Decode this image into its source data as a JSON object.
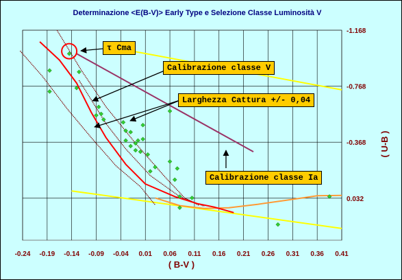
{
  "chart_data": {
    "type": "scatter",
    "title": "Determinazione <E(B-V)> Early Type e Selezione Classe Luminosità V",
    "xlabel": "( B-V )",
    "ylabel": "( U-B )",
    "x_ticks": [
      "-0.24",
      "-0.19",
      "-0.14",
      "-0.09",
      "-0.04",
      "0.01",
      "0.06",
      "0.11",
      "0.16",
      "0.21",
      "0.26",
      "0.31",
      "0.36",
      "0.41"
    ],
    "y_ticks": [
      "-1.168",
      "-0.768",
      "-0.368",
      "0.032"
    ],
    "xlim": [
      -0.24,
      0.41
    ],
    "ylim": [
      0.332,
      -1.168
    ],
    "grid": true,
    "colors": {
      "background": "#ccffff",
      "title": "#000080",
      "axis_label": "#800000",
      "points": "#33cc33",
      "main_sequence": "#ff0000",
      "capture_band": "#800000",
      "class_ia": "#993366",
      "yellow_lines": "#ffff00",
      "orange_curve": "#ff9933",
      "annotation_box": "#ffcc00",
      "tcma_circle": "#ff0000"
    },
    "points": [
      [
        -0.185,
        -0.88
      ],
      [
        -0.185,
        -0.73
      ],
      [
        -0.145,
        -1.0
      ],
      [
        -0.125,
        -0.87
      ],
      [
        -0.13,
        -0.755
      ],
      [
        -0.085,
        -0.62
      ],
      [
        -0.09,
        -0.56
      ],
      [
        -0.08,
        -0.57
      ],
      [
        -0.075,
        -0.53
      ],
      [
        -0.035,
        -0.51
      ],
      [
        -0.03,
        -0.45
      ],
      [
        -0.03,
        -0.38
      ],
      [
        -0.02,
        -0.34
      ],
      [
        -0.02,
        -0.44
      ],
      [
        -0.01,
        -0.36
      ],
      [
        -0.005,
        -0.38
      ],
      [
        -0.01,
        -0.31
      ],
      [
        0.005,
        -0.49
      ],
      [
        0.005,
        -0.39
      ],
      [
        0.0,
        -0.3
      ],
      [
        0.015,
        -0.28
      ],
      [
        0.02,
        -0.16
      ],
      [
        0.03,
        -0.19
      ],
      [
        0.06,
        -0.59
      ],
      [
        0.06,
        -0.23
      ],
      [
        0.075,
        -0.18
      ],
      [
        0.07,
        -0.1
      ],
      [
        0.08,
        0.02
      ],
      [
        0.08,
        0.1
      ],
      [
        0.105,
        0.03
      ],
      [
        0.28,
        0.22
      ],
      [
        0.385,
        0.02
      ]
    ],
    "main_sequence": [
      [
        -0.205,
        -1.085
      ],
      [
        -0.165,
        -0.955
      ],
      [
        -0.13,
        -0.79
      ],
      [
        -0.1,
        -0.58
      ],
      [
        -0.07,
        -0.4
      ],
      [
        -0.03,
        -0.21
      ],
      [
        0.01,
        -0.07
      ],
      [
        0.07,
        0.02
      ],
      [
        0.115,
        0.07
      ],
      [
        0.15,
        0.095
      ],
      [
        0.19,
        0.135
      ]
    ],
    "capture_upper": [
      [
        -0.17,
        -1.168
      ],
      [
        -0.12,
        -0.88
      ],
      [
        -0.07,
        -0.62
      ],
      [
        -0.01,
        -0.36
      ],
      [
        0.05,
        -0.12
      ],
      [
        0.09,
        0.03
      ],
      [
        0.12,
        0.085
      ]
    ],
    "capture_lower": [
      [
        -0.245,
        -1.02
      ],
      [
        -0.2,
        -0.84
      ],
      [
        -0.15,
        -0.61
      ],
      [
        -0.1,
        -0.4
      ],
      [
        -0.05,
        -0.2
      ],
      [
        0.0,
        -0.05
      ],
      [
        0.03,
        0.08
      ]
    ],
    "capture_lower2": [
      [
        -0.125,
        -0.81
      ],
      [
        -0.1,
        -0.67
      ],
      [
        -0.07,
        -0.5
      ],
      [
        -0.03,
        -0.32
      ],
      [
        0.02,
        -0.13
      ],
      [
        0.08,
        0.02
      ],
      [
        0.13,
        0.09
      ]
    ],
    "class_ia_line": [
      [
        -0.13,
        -1.0
      ],
      [
        0.23,
        -0.3
      ]
    ],
    "yellow_line_top": [
      [
        -0.065,
        -1.05
      ],
      [
        0.41,
        -0.742
      ]
    ],
    "yellow_line_bottom": [
      [
        -0.14,
        -0.02
      ],
      [
        0.41,
        0.248
      ]
    ],
    "orange_curve": [
      [
        0.03,
        0.03
      ],
      [
        0.08,
        0.085
      ],
      [
        0.13,
        0.105
      ],
      [
        0.18,
        0.1
      ],
      [
        0.24,
        0.075
      ],
      [
        0.3,
        0.045
      ],
      [
        0.36,
        0.015
      ],
      [
        0.41,
        0.012
      ]
    ],
    "tcma_circle": [
      -0.145,
      -1.018
    ],
    "annotations": {
      "tcma": "τ Cma",
      "calib_v": "Calibrazione classe V",
      "capture_width": "Larghezza Cattura +/-   0,04",
      "calib_ia": "Calibrazione classe Ia"
    }
  }
}
